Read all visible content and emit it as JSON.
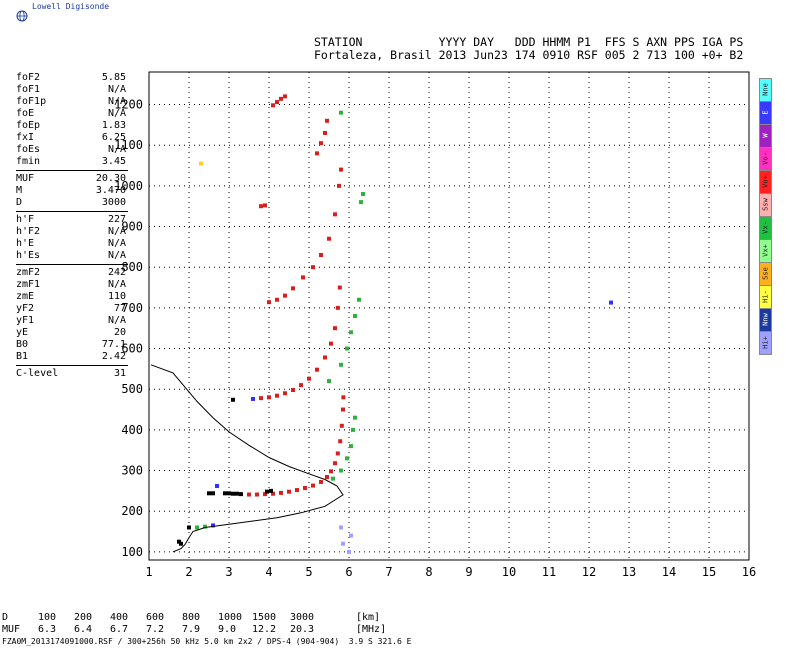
{
  "app": {
    "logo_text": "Lowell Digisonde"
  },
  "header": {
    "line1": "STATION           YYYY DAY   DDD HHMM P1  FFS S AXN PPS IGA PS",
    "line2": "Fortaleza, Brasil 2013 Jun23 174 0910 RSF 005 2 713 100 +0+ B2"
  },
  "params": [
    {
      "name": "foF2",
      "value": "5.85"
    },
    {
      "name": "foF1",
      "value": "N/A"
    },
    {
      "name": "foF1p",
      "value": "N/A"
    },
    {
      "name": "foE",
      "value": "N/A"
    },
    {
      "name": "foEp",
      "value": "1.83"
    },
    {
      "name": "fxI",
      "value": "6.25"
    },
    {
      "name": "foEs",
      "value": "N/A"
    },
    {
      "name": "fmin",
      "value": "3.45"
    },
    {
      "sep": true
    },
    {
      "name": "MUF",
      "value": "20.30"
    },
    {
      "name": "M",
      "value": "3.470"
    },
    {
      "name": "D",
      "value": "3000"
    },
    {
      "sep": true
    },
    {
      "name": "h'F",
      "value": "227"
    },
    {
      "name": "h'F2",
      "value": "N/A"
    },
    {
      "name": "h'E",
      "value": "N/A"
    },
    {
      "name": "h'Es",
      "value": "N/A"
    },
    {
      "sep": true
    },
    {
      "name": "zmF2",
      "value": "242"
    },
    {
      "name": "zmF1",
      "value": "N/A"
    },
    {
      "name": "zmE",
      "value": "110"
    },
    {
      "name": "yF2",
      "value": "77"
    },
    {
      "name": "yF1",
      "value": "N/A"
    },
    {
      "name": "yE",
      "value": "20"
    },
    {
      "name": "B0",
      "value": "77.1"
    },
    {
      "name": "B1",
      "value": "2.42"
    },
    {
      "sep": true
    },
    {
      "name": "C-level",
      "value": "31"
    }
  ],
  "legend": [
    {
      "label": "Nne",
      "color": "#55ffff"
    },
    {
      "label": "E",
      "color": "#3a3aff"
    },
    {
      "label": "W",
      "color": "#a020c0"
    },
    {
      "label": "Vo-",
      "color": "#ff30c0"
    },
    {
      "label": "Vo+",
      "color": "#ff2020"
    },
    {
      "label": "Ssw",
      "color": "#ffb0b0"
    },
    {
      "label": "Vx-",
      "color": "#20c040"
    },
    {
      "label": "Vx+",
      "color": "#90ff90"
    },
    {
      "label": "Sse",
      "color": "#ffb020"
    },
    {
      "label": "Hi-",
      "color": "#ffff40"
    },
    {
      "label": "Nnw",
      "color": "#1a3aa0"
    },
    {
      "label": "Hi+",
      "color": "#a0a0ff"
    }
  ],
  "bottom_table": {
    "row1_label": "D",
    "row1_values": [
      "100",
      "200",
      "400",
      "600",
      "800",
      "1000",
      "1500",
      "3000",
      "[km]"
    ],
    "row2_label": "MUF",
    "row2_values": [
      "6.3",
      "6.4",
      "6.7",
      "7.2",
      "7.9",
      "9.0",
      "12.2",
      "20.3",
      "[MHz]"
    ]
  },
  "footer": "FZA0M_2013174091000.RSF / 300+256h 50 kHz 5.0 km 2x2 / DPS-4 (904-904)  3.9 S 321.6 E",
  "chart_data": {
    "type": "scatter",
    "title": "",
    "xlabel": "",
    "ylabel": "",
    "xlim": [
      1,
      16
    ],
    "ylim": [
      80,
      1280
    ],
    "x_ticks": [
      1,
      2,
      3,
      4,
      5,
      6,
      7,
      8,
      9,
      10,
      11,
      12,
      13,
      14,
      15,
      16
    ],
    "y_ticks": [
      100,
      200,
      300,
      400,
      500,
      600,
      700,
      800,
      900,
      1000,
      1100,
      1200
    ],
    "grid": true,
    "series": [
      {
        "color": "#d42020",
        "points": [
          [
            3.5,
            241
          ],
          [
            3.7,
            241
          ],
          [
            3.9,
            242
          ],
          [
            4.1,
            243
          ],
          [
            4.3,
            245
          ],
          [
            4.5,
            248
          ],
          [
            4.7,
            252
          ],
          [
            4.9,
            257
          ],
          [
            5.1,
            263
          ],
          [
            5.3,
            272
          ],
          [
            5.45,
            284
          ],
          [
            5.55,
            298
          ],
          [
            5.65,
            318
          ],
          [
            5.72,
            342
          ],
          [
            5.78,
            372
          ],
          [
            5.82,
            410
          ],
          [
            5.85,
            450
          ],
          [
            5.86,
            480
          ],
          [
            3.8,
            478
          ],
          [
            4.0,
            480
          ],
          [
            4.2,
            484
          ],
          [
            4.4,
            490
          ],
          [
            4.6,
            498
          ],
          [
            4.8,
            510
          ],
          [
            5.0,
            526
          ],
          [
            5.2,
            548
          ],
          [
            5.4,
            578
          ],
          [
            5.55,
            612
          ],
          [
            5.65,
            650
          ],
          [
            5.72,
            700
          ],
          [
            5.77,
            750
          ],
          [
            4.0,
            714
          ],
          [
            4.2,
            720
          ],
          [
            4.4,
            730
          ],
          [
            4.6,
            748
          ],
          [
            4.85,
            775
          ],
          [
            5.1,
            800
          ],
          [
            5.3,
            830
          ],
          [
            5.5,
            870
          ],
          [
            5.65,
            930
          ],
          [
            5.75,
            1000
          ],
          [
            5.8,
            1040
          ],
          [
            3.8,
            950
          ],
          [
            3.9,
            952
          ],
          [
            4.1,
            1198
          ],
          [
            4.2,
            1206
          ],
          [
            4.3,
            1214
          ],
          [
            4.4,
            1220
          ],
          [
            5.2,
            1080
          ],
          [
            5.3,
            1105
          ],
          [
            5.4,
            1130
          ],
          [
            5.45,
            1160
          ]
        ]
      },
      {
        "color": "#30b040",
        "points": [
          [
            5.6,
            280
          ],
          [
            5.8,
            300
          ],
          [
            5.95,
            330
          ],
          [
            6.05,
            360
          ],
          [
            6.1,
            400
          ],
          [
            6.15,
            430
          ],
          [
            5.5,
            520
          ],
          [
            5.8,
            560
          ],
          [
            5.95,
            600
          ],
          [
            6.05,
            640
          ],
          [
            6.15,
            680
          ],
          [
            6.25,
            720
          ],
          [
            6.3,
            960
          ],
          [
            6.35,
            980
          ],
          [
            2.2,
            160
          ],
          [
            2.4,
            162
          ],
          [
            5.8,
            1180
          ]
        ]
      },
      {
        "color": "#000000",
        "points": [
          [
            2.5,
            244
          ],
          [
            2.6,
            244
          ],
          [
            2.9,
            244
          ],
          [
            3.0,
            244
          ],
          [
            3.1,
            243
          ],
          [
            3.2,
            243
          ],
          [
            3.3,
            242
          ],
          [
            3.95,
            248
          ],
          [
            4.05,
            250
          ],
          [
            3.1,
            474
          ],
          [
            1.75,
            125
          ],
          [
            1.8,
            120
          ],
          [
            2.0,
            160
          ]
        ]
      },
      {
        "color": "#3030ff",
        "points": [
          [
            2.7,
            262
          ],
          [
            3.6,
            476
          ],
          [
            2.6,
            165
          ],
          [
            12.55,
            713
          ]
        ]
      },
      {
        "color": "#a0a0ff",
        "points": [
          [
            5.8,
            160
          ],
          [
            6.05,
            140
          ],
          [
            5.85,
            120
          ],
          [
            6.0,
            100
          ]
        ]
      },
      {
        "color": "#ffd020",
        "points": [
          [
            2.3,
            1055
          ]
        ]
      }
    ],
    "profile": {
      "color": "#000000",
      "points": [
        [
          1.6,
          100
        ],
        [
          1.8,
          108
        ],
        [
          1.9,
          118
        ],
        [
          2.0,
          135
        ],
        [
          2.1,
          150
        ],
        [
          2.4,
          160
        ],
        [
          3.0,
          168
        ],
        [
          3.6,
          176
        ],
        [
          4.2,
          184
        ],
        [
          4.8,
          196
        ],
        [
          5.4,
          212
        ],
        [
          5.85,
          240
        ],
        [
          5.7,
          262
        ],
        [
          5.4,
          278
        ],
        [
          5.0,
          292
        ],
        [
          4.5,
          310
        ],
        [
          4.0,
          332
        ],
        [
          3.5,
          362
        ],
        [
          3.0,
          395
        ],
        [
          2.6,
          430
        ],
        [
          2.2,
          470
        ],
        [
          1.9,
          505
        ],
        [
          1.6,
          540
        ],
        [
          1.05,
          560
        ]
      ]
    }
  }
}
